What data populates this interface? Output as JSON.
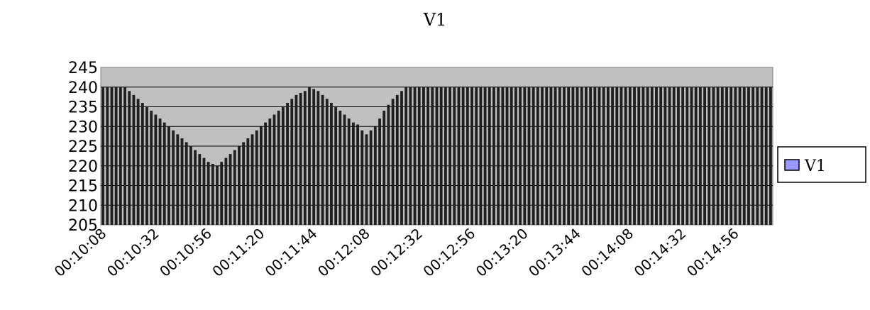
{
  "chart_data": {
    "type": "bar",
    "title": "V1",
    "xlabel": "",
    "ylabel": "",
    "ylim": [
      205,
      245
    ],
    "y_ticks": [
      205,
      210,
      215,
      220,
      225,
      230,
      235,
      240,
      245
    ],
    "x_tick_labels": [
      "00:10:08",
      "00:10:32",
      "00:10:56",
      "00:11:20",
      "00:11:44",
      "00:12:08",
      "00:12:32",
      "00:12:56",
      "00:13:20",
      "00:13:44",
      "00:14:08",
      "00:14:32",
      "00:14:56"
    ],
    "x_start": "00:10:08",
    "x_end": "00:15:13",
    "x_step_seconds": 2,
    "series": [
      {
        "name": "V1",
        "color": "#1f1f1f",
        "values": [
          240,
          240,
          240,
          240,
          240,
          240,
          239,
          238,
          237,
          236,
          235,
          234,
          233,
          232,
          231,
          230,
          229,
          228,
          227,
          226,
          225,
          224,
          223,
          222,
          221,
          220.5,
          220,
          221,
          222,
          223,
          224,
          225,
          226,
          227,
          228,
          229,
          230,
          231,
          232,
          233,
          234,
          235,
          236,
          237,
          238,
          238.5,
          239,
          240,
          239.5,
          239,
          238,
          237,
          236,
          235,
          234,
          233,
          232,
          231,
          230.5,
          229,
          228,
          229,
          230,
          232,
          234,
          235.5,
          237,
          238,
          239,
          240,
          240,
          240,
          240,
          240,
          240,
          240,
          240,
          240,
          240,
          240,
          240,
          240,
          240,
          240,
          240,
          240,
          240,
          240,
          240,
          240,
          240,
          240,
          240,
          240,
          240,
          240,
          240,
          240,
          240,
          240,
          240,
          240,
          240,
          240,
          240,
          240,
          240,
          240,
          240,
          240,
          240,
          240,
          240,
          240,
          240,
          240,
          240,
          240,
          240,
          240,
          240,
          240,
          240,
          240,
          240,
          240,
          240,
          240,
          240,
          240,
          240,
          240,
          240,
          240,
          240,
          240,
          240,
          240,
          240,
          240,
          240,
          240,
          240,
          240,
          240,
          240,
          240,
          240,
          240,
          240,
          240,
          240,
          240
        ]
      }
    ],
    "plot_background": "#c0c0c0",
    "gridlines": true,
    "legend": {
      "position": "right",
      "entries": [
        "V1"
      ],
      "swatch_color": "#9999ff"
    }
  }
}
